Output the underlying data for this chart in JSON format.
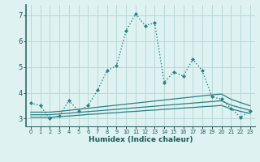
{
  "x": [
    0,
    1,
    2,
    3,
    4,
    5,
    6,
    7,
    8,
    9,
    10,
    11,
    12,
    13,
    14,
    15,
    16,
    17,
    18,
    19,
    20,
    21,
    22,
    23
  ],
  "main_line": [
    3.6,
    3.5,
    3.0,
    3.1,
    3.7,
    3.3,
    3.5,
    4.1,
    4.85,
    5.05,
    6.4,
    7.05,
    6.6,
    6.7,
    4.4,
    4.8,
    4.65,
    5.3,
    4.85,
    3.85,
    3.75,
    3.4,
    3.05,
    3.3
  ],
  "ref_line1": [
    3.05,
    3.05,
    3.05,
    3.08,
    3.1,
    3.13,
    3.16,
    3.18,
    3.21,
    3.23,
    3.26,
    3.28,
    3.31,
    3.33,
    3.36,
    3.38,
    3.41,
    3.43,
    3.46,
    3.48,
    3.51,
    3.38,
    3.28,
    3.2
  ],
  "ref_line2": [
    3.15,
    3.15,
    3.15,
    3.18,
    3.21,
    3.24,
    3.27,
    3.3,
    3.33,
    3.36,
    3.39,
    3.42,
    3.45,
    3.48,
    3.51,
    3.54,
    3.57,
    3.6,
    3.63,
    3.66,
    3.69,
    3.52,
    3.42,
    3.32
  ],
  "ref_line3": [
    3.25,
    3.25,
    3.25,
    3.28,
    3.32,
    3.36,
    3.4,
    3.44,
    3.48,
    3.52,
    3.56,
    3.6,
    3.64,
    3.68,
    3.72,
    3.76,
    3.8,
    3.84,
    3.88,
    3.92,
    3.95,
    3.75,
    3.62,
    3.5
  ],
  "line_color": "#2a8080",
  "bg_color": "#dff2f2",
  "grid_color": "#b8d8d8",
  "xlabel": "Humidex (Indice chaleur)",
  "ylim": [
    2.7,
    7.4
  ],
  "xlim": [
    -0.5,
    23.5
  ],
  "yticks": [
    3,
    4,
    5,
    6,
    7
  ],
  "xticks": [
    0,
    1,
    2,
    3,
    4,
    5,
    6,
    7,
    8,
    9,
    10,
    11,
    12,
    13,
    14,
    15,
    16,
    17,
    18,
    19,
    20,
    21,
    22,
    23
  ]
}
